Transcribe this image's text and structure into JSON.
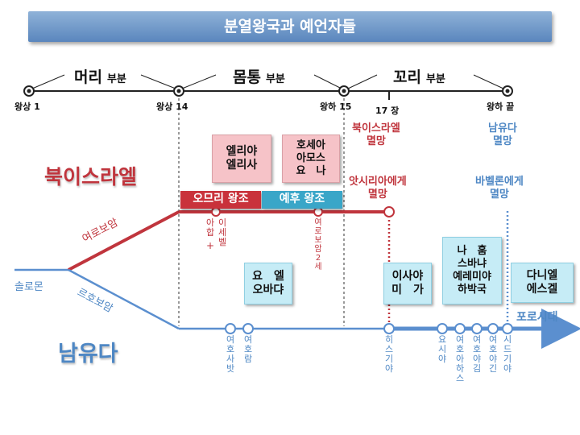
{
  "title": "분열왕국과 예언자들",
  "segments": [
    {
      "main": "머리",
      "sub": "부분"
    },
    {
      "main": "몸통",
      "sub": "부분"
    },
    {
      "main": "꼬리",
      "sub": "부분"
    }
  ],
  "ticks": [
    "왕상 1",
    "왕상 14",
    "왕하 15",
    "17 장",
    "왕하 끝"
  ],
  "kingdoms": {
    "north": "북이스라엘",
    "south": "남유다"
  },
  "persons": {
    "solomon": "솔로몬",
    "jeroboam": "여로보암",
    "rehoboam": "르호보암"
  },
  "dynasties": {
    "omri": "오므리 왕조",
    "jehu": "예후 왕조"
  },
  "events": {
    "north_fall": "북이스라엘\n멸망",
    "assyria": "앗시리아에게\n멸망",
    "south_fall": "남유다\n멸망",
    "babylon": "바벨론에게\n멸망",
    "exile": "포로시대"
  },
  "prophet_boxes": {
    "elijah": "엘리야\n엘리사",
    "hosea": "호세아\n아모스\n요　나",
    "jonah_obadiah": "요　엘\n오바댜",
    "isaiah": "이사야\n미　가",
    "nahum": "나　훔\n스바냐\n예레미야\n하박국",
    "daniel": "다니엘\n에스겔"
  },
  "north_kings": {
    "ahab": "아합",
    "jezebel": "이세벨",
    "plus": "+",
    "jeroboam2": "여로보암2세"
  },
  "south_kings": {
    "jehoshaphat": "여호사밧",
    "jehoram": "여호람",
    "hezekiah": "히스기야",
    "josiah": "요시야",
    "jehoahaz": "여호아하스",
    "jehoiakim": "여호야김",
    "jehoiachin": "여호야긴",
    "zedekiah": "시드기야"
  }
}
